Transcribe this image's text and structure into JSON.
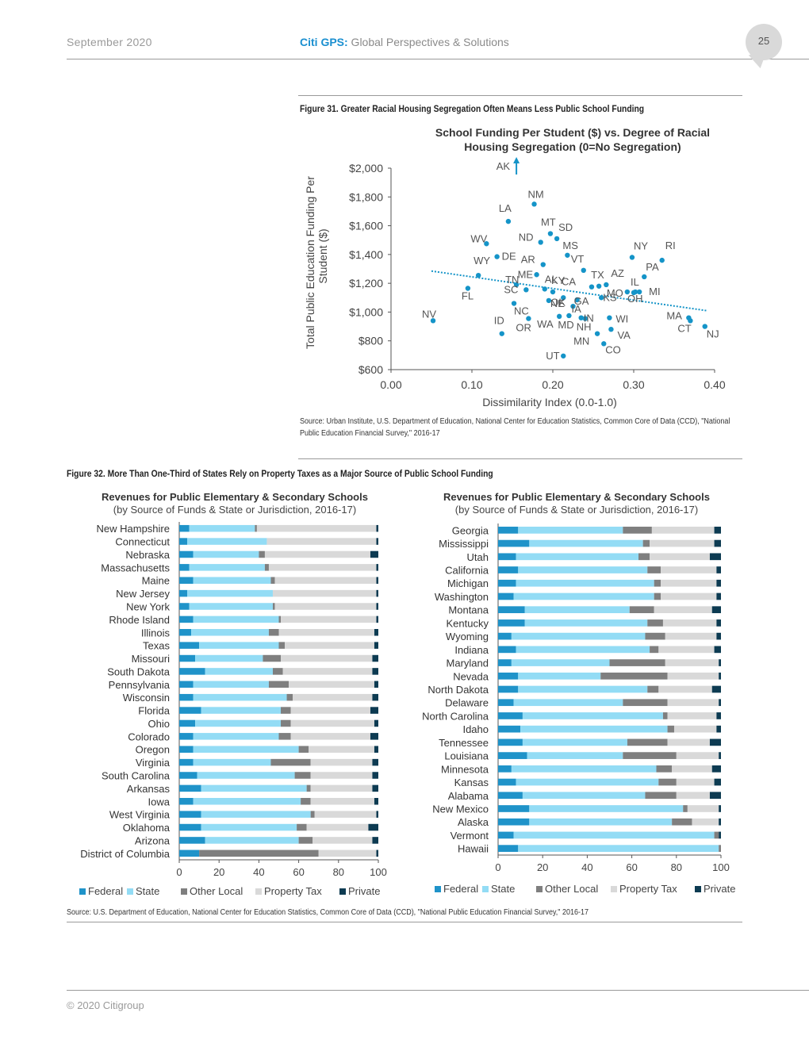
{
  "header": {
    "date": "September 2020",
    "brand": "Citi GPS:",
    "subtitle": " Global Perspectives & Solutions",
    "page_number": "25"
  },
  "colors": {
    "federal": "#1f93c9",
    "state": "#93dcf5",
    "other_local": "#7f7f7f",
    "property_tax": "#d9d9d9",
    "private": "#0d3b52",
    "scatter": "#1594c8"
  },
  "figure31": {
    "caption": "Figure 31. Greater Racial Housing Segregation Often Means Less Public School Funding",
    "source": "Source: Urban Institute, U.S. Department of Education, National Center for Education Statistics, Common Core of Data (CCD), \"National Public Education Financial Survey,\" 2016-17"
  },
  "figure32": {
    "caption": "Figure 32. More Than One-Third of States Rely on Property Taxes as a Major Source of Public School Funding",
    "source": "Source: U.S. Department of Education, National Center for Education Statistics, Common Core of Data (CCD), \"National Public Education Financial Survey,\" 2016-17"
  },
  "footer": {
    "copyright": "© 2020 Citigroup"
  },
  "chart_data": [
    {
      "type": "scatter",
      "title_line1": "School Funding Per Student ($) vs. Degree of Racial",
      "title_line2": "Housing Segregation (0=No Segregation)",
      "xlabel": "Dissimilarity Index (0.0-1.0)",
      "ylabel_line1": "Total Public Education Funding Per",
      "ylabel_line2": "Student ($)",
      "xlim": [
        0,
        0.4
      ],
      "ylim": [
        600,
        2000
      ],
      "xticks": [
        0,
        0.1,
        0.2,
        0.3,
        0.4
      ],
      "xtick_labels": [
        "0.00",
        "0.10",
        "0.20",
        "0.30",
        "0.40"
      ],
      "yticks": [
        600,
        800,
        1000,
        1200,
        1400,
        1600,
        1800,
        2000
      ],
      "ytick_labels": [
        "$600",
        "$800",
        "$1,000",
        "$1,200",
        "$1,400",
        "$1,600",
        "$1,800",
        "$2,000"
      ],
      "trendline": {
        "x": [
          0.05,
          0.39
        ],
        "y": [
          1285,
          1010
        ],
        "style": "dotted"
      },
      "outlier": {
        "label": "AK",
        "x": 0.155,
        "note": "above axis"
      },
      "points": [
        {
          "label": "NV",
          "x": 0.052,
          "y": 940
        },
        {
          "label": "FL",
          "x": 0.095,
          "y": 1165
        },
        {
          "label": "WY",
          "x": 0.108,
          "y": 1255
        },
        {
          "label": "WV",
          "x": 0.118,
          "y": 1475
        },
        {
          "label": "DE",
          "x": 0.131,
          "y": 1385
        },
        {
          "label": "ID",
          "x": 0.137,
          "y": 850
        },
        {
          "label": "LA",
          "x": 0.145,
          "y": 1630
        },
        {
          "label": "NC",
          "x": 0.152,
          "y": 1060
        },
        {
          "label": "TN",
          "x": 0.155,
          "y": 1190
        },
        {
          "label": "SC",
          "x": 0.167,
          "y": 1155
        },
        {
          "label": "OR",
          "x": 0.17,
          "y": 955
        },
        {
          "label": "NM",
          "x": 0.177,
          "y": 1750
        },
        {
          "label": "ME",
          "x": 0.18,
          "y": 1260
        },
        {
          "label": "ND",
          "x": 0.185,
          "y": 1485
        },
        {
          "label": "AR",
          "x": 0.188,
          "y": 1330
        },
        {
          "label": "AL",
          "x": 0.19,
          "y": 1160
        },
        {
          "label": "NE",
          "x": 0.195,
          "y": 1080
        },
        {
          "label": "MT",
          "x": 0.197,
          "y": 1545
        },
        {
          "label": "KY",
          "x": 0.2,
          "y": 1140
        },
        {
          "label": "SD",
          "x": 0.205,
          "y": 1510
        },
        {
          "label": "WA",
          "x": 0.208,
          "y": 970
        },
        {
          "label": "OK",
          "x": 0.213,
          "y": 1100
        },
        {
          "label": "MD",
          "x": 0.22,
          "y": 975
        },
        {
          "label": "MS",
          "x": 0.218,
          "y": 1395
        },
        {
          "label": "IA",
          "x": 0.225,
          "y": 1040
        },
        {
          "label": "GA",
          "x": 0.23,
          "y": 1085
        },
        {
          "label": "NH",
          "x": 0.235,
          "y": 960
        },
        {
          "label": "VT",
          "x": 0.238,
          "y": 1290
        },
        {
          "label": "IN",
          "x": 0.24,
          "y": 955
        },
        {
          "label": "CA",
          "x": 0.248,
          "y": 1175
        },
        {
          "label": "MN",
          "x": 0.255,
          "y": 850
        },
        {
          "label": "TX",
          "x": 0.257,
          "y": 1180
        },
        {
          "label": "KS",
          "x": 0.26,
          "y": 1100
        },
        {
          "label": "CO",
          "x": 0.263,
          "y": 780
        },
        {
          "label": "AZ",
          "x": 0.266,
          "y": 1190
        },
        {
          "label": "WI",
          "x": 0.27,
          "y": 960
        },
        {
          "label": "VA",
          "x": 0.272,
          "y": 880
        },
        {
          "label": "MO",
          "x": 0.292,
          "y": 1140
        },
        {
          "label": "NY",
          "x": 0.298,
          "y": 1380
        },
        {
          "label": "OH",
          "x": 0.3,
          "y": 1135
        },
        {
          "label": "IL",
          "x": 0.302,
          "y": 1140
        },
        {
          "label": "MI",
          "x": 0.307,
          "y": 1140
        },
        {
          "label": "PA",
          "x": 0.313,
          "y": 1245
        },
        {
          "label": "RI",
          "x": 0.335,
          "y": 1360
        },
        {
          "label": "MA",
          "x": 0.368,
          "y": 960
        },
        {
          "label": "CT",
          "x": 0.37,
          "y": 940
        },
        {
          "label": "NJ",
          "x": 0.388,
          "y": 900
        },
        {
          "label": "UT",
          "x": 0.213,
          "y": 695
        }
      ]
    },
    {
      "type": "stacked-bar-horizontal",
      "title": "Revenues for Public Elementary & Secondary Schools",
      "subtitle": "(by Source of Funds & State or Jurisdiction, 2016-17)",
      "xlim": [
        0,
        100
      ],
      "xticks": [
        "0",
        "20",
        "40",
        "60",
        "80",
        "100"
      ],
      "legend": [
        "Federal",
        "State",
        "Other Local",
        "Property Tax",
        "Private"
      ],
      "categories": [
        "New Hampshire",
        "Connecticut",
        "Nebraska",
        "Massachusetts",
        "Maine",
        "New Jersey",
        "New York",
        "Rhode Island",
        "Illinois",
        "Texas",
        "Missouri",
        "South Dakota",
        "Pennsylvania",
        "Wisconsin",
        "Florida",
        "Ohio",
        "Colorado",
        "Oregon",
        "Virginia",
        "South Carolina",
        "Arkansas",
        "Iowa",
        "West Virginia",
        "Oklahoma",
        "Arizona",
        "District of Columbia"
      ],
      "series": [
        {
          "name": "Federal",
          "values": [
            5,
            4,
            7,
            5,
            7,
            4,
            5,
            7,
            6,
            10,
            8,
            13,
            7,
            7,
            11,
            8,
            7,
            7,
            7,
            9,
            11,
            7,
            11,
            11,
            13,
            10
          ]
        },
        {
          "name": "State",
          "values": [
            33,
            40,
            33,
            38,
            39,
            43,
            42,
            43,
            39,
            40,
            34,
            34,
            38,
            47,
            40,
            43,
            43,
            53,
            39,
            49,
            53,
            54,
            55,
            48,
            47,
            0
          ]
        },
        {
          "name": "Other Local",
          "values": [
            1,
            0,
            3,
            2,
            2,
            0,
            1,
            1,
            5,
            3,
            9,
            5,
            10,
            3,
            5,
            5,
            6,
            5,
            20,
            8,
            2,
            5,
            2,
            5,
            7,
            60
          ]
        },
        {
          "name": "Property Tax",
          "values": [
            60,
            55,
            53,
            54,
            51,
            52,
            51,
            48,
            48,
            45,
            46,
            45,
            43,
            40,
            40,
            42,
            40,
            33,
            31,
            31,
            31,
            32,
            31,
            31,
            30,
            29
          ]
        },
        {
          "name": "Private",
          "values": [
            1,
            1,
            4,
            1,
            1,
            1,
            1,
            1,
            2,
            2,
            3,
            3,
            2,
            3,
            4,
            2,
            4,
            2,
            3,
            3,
            3,
            2,
            1,
            5,
            3,
            1
          ]
        }
      ]
    },
    {
      "type": "stacked-bar-horizontal",
      "title": "Revenues for Public Elementary & Secondary Schools",
      "subtitle": "(by Source of Funds & State or Jurisdiction, 2016-17)",
      "xlim": [
        0,
        100
      ],
      "xticks": [
        "0",
        "20",
        "40",
        "60",
        "80",
        "100"
      ],
      "legend": [
        "Federal",
        "State",
        "Other Local",
        "Property Tax",
        "Private"
      ],
      "categories": [
        "Georgia",
        "Mississippi",
        "Utah",
        "California",
        "Michigan",
        "Washington",
        "Montana",
        "Kentucky",
        "Wyoming",
        "Indiana",
        "Maryland",
        "Nevada",
        "North Dakota",
        "Delaware",
        "North Carolina",
        "Idaho",
        "Tennessee",
        "Louisiana",
        "Minnesota",
        "Kansas",
        "Alabama",
        "New Mexico",
        "Alaska",
        "Vermont",
        "Hawaii"
      ],
      "series": [
        {
          "name": "Federal",
          "values": [
            9,
            14,
            8,
            9,
            8,
            7,
            12,
            12,
            6,
            8,
            6,
            9,
            9,
            7,
            11,
            10,
            11,
            13,
            6,
            8,
            11,
            14,
            14,
            7,
            9
          ]
        },
        {
          "name": "State",
          "values": [
            47,
            51,
            55,
            58,
            62,
            63,
            47,
            55,
            60,
            60,
            44,
            37,
            58,
            49,
            63,
            66,
            47,
            43,
            65,
            64,
            55,
            69,
            64,
            90,
            90
          ]
        },
        {
          "name": "Other Local",
          "values": [
            13,
            3,
            5,
            6,
            3,
            3,
            11,
            7,
            9,
            4,
            25,
            30,
            5,
            20,
            2,
            3,
            18,
            24,
            7,
            8,
            14,
            2,
            9,
            2,
            1
          ]
        },
        {
          "name": "Property Tax",
          "values": [
            28,
            29,
            27,
            25,
            25,
            25,
            26,
            24,
            23,
            25,
            24,
            23,
            24,
            23,
            22,
            19,
            19,
            19,
            18,
            17,
            15,
            14,
            12,
            0,
            0
          ]
        },
        {
          "name": "Private",
          "values": [
            3,
            3,
            5,
            2,
            2,
            2,
            4,
            2,
            2,
            3,
            1,
            1,
            4,
            1,
            2,
            2,
            5,
            1,
            4,
            3,
            5,
            1,
            1,
            1,
            0
          ]
        }
      ]
    }
  ]
}
